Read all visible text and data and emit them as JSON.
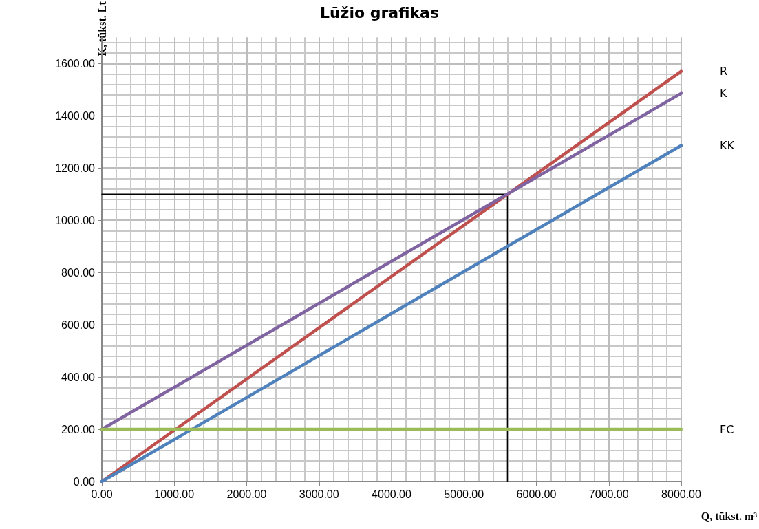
{
  "chart_data": {
    "type": "line",
    "title": "Lūžio grafikas",
    "xlabel": "Q, tūkst. m³",
    "ylabel": "K, tūkst. Lt",
    "xlim": [
      0,
      8000
    ],
    "ylim": [
      0,
      1700
    ],
    "xticks": [
      {
        "value": 0,
        "label": "0.00"
      },
      {
        "value": 1000,
        "label": "1000.00"
      },
      {
        "value": 2000,
        "label": "2000.00"
      },
      {
        "value": 3000,
        "label": "3000.00"
      },
      {
        "value": 4000,
        "label": "4000.00"
      },
      {
        "value": 5000,
        "label": "5000.00"
      },
      {
        "value": 6000,
        "label": "6000.00"
      },
      {
        "value": 7000,
        "label": "7000.00"
      },
      {
        "value": 8000,
        "label": "8000.00"
      }
    ],
    "yticks": [
      {
        "value": 0,
        "label": "0.00"
      },
      {
        "value": 200,
        "label": "200.00"
      },
      {
        "value": 400,
        "label": "400.00"
      },
      {
        "value": 600,
        "label": "600.00"
      },
      {
        "value": 800,
        "label": "800.00"
      },
      {
        "value": 1000,
        "label": "1000.00"
      },
      {
        "value": 1200,
        "label": "1200.00"
      },
      {
        "value": 1400,
        "label": "1400.00"
      },
      {
        "value": 1600,
        "label": "1600.00"
      }
    ],
    "grid": true,
    "legend": false,
    "marker": "none",
    "line_style": "solid",
    "series": [
      {
        "name": "R",
        "color": "#c0504d",
        "x": [
          0,
          8000
        ],
        "values": [
          0,
          1570
        ]
      },
      {
        "name": "K",
        "color": "#8064a2",
        "x": [
          0,
          8000
        ],
        "values": [
          200,
          1486
        ]
      },
      {
        "name": "KK",
        "color": "#4f81bd",
        "x": [
          0,
          8000
        ],
        "values": [
          0,
          1286
        ]
      },
      {
        "name": "FC",
        "color": "#9bbb59",
        "x": [
          0,
          8000
        ],
        "values": [
          200,
          200
        ]
      },
      {
        "color": "#000000",
        "x": [
          0,
          5600,
          5600
        ],
        "values": [
          1100,
          1100,
          0
        ]
      }
    ]
  }
}
